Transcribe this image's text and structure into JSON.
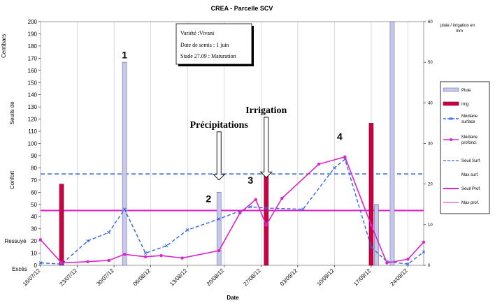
{
  "chart_data": {
    "type": "bar+line",
    "title": "CREA  - Parcelle SCV",
    "xlabel": "Date",
    "ylabel_left": "Centibars",
    "ylabel_right": "pluie / irrigation en mm",
    "ylim_left": [
      0,
      200
    ],
    "ylim_right": [
      0,
      60
    ],
    "left_ticks": [
      0,
      10,
      20,
      30,
      40,
      50,
      60,
      70,
      80,
      90,
      100,
      110,
      120,
      130,
      140,
      150,
      160,
      170,
      180,
      190,
      200
    ],
    "right_ticks": [
      0,
      10,
      20,
      30,
      40,
      50,
      60
    ],
    "x_ticks": [
      "16/07/12",
      "23/07/12",
      "30/07/12",
      "06/08/12",
      "13/08/12",
      "20/08/12",
      "27/08/12",
      "03/09/12",
      "10/09/12",
      "17/09/12",
      "24/09/12"
    ],
    "x_domain": [
      "2012-07-16",
      "2012-09-27"
    ],
    "zones": [
      {
        "label": "Excès",
        "y": 0
      },
      {
        "label": "Ressuyé",
        "y": 20
      },
      {
        "label": "Confort",
        "y": 70
      },
      {
        "label": "Seuils de",
        "y": 125
      },
      {
        "label": "Centibars",
        "y": 180
      }
    ],
    "series": [
      {
        "name": "Pluie",
        "kind": "bar",
        "axis": "right",
        "color": "#c8c8ec",
        "points": [
          [
            "2012-08-01",
            50
          ],
          [
            "2012-08-19",
            18
          ],
          [
            "2012-09-18",
            15
          ],
          [
            "2012-09-21",
            62
          ]
        ]
      },
      {
        "name": "Irrig",
        "kind": "bar",
        "axis": "right",
        "color": "#cc0044",
        "points": [
          [
            "2012-07-20",
            20
          ],
          [
            "2012-08-28",
            22
          ],
          [
            "2012-09-17",
            35
          ]
        ]
      },
      {
        "name": "Médiane surface",
        "kind": "line",
        "axis": "left",
        "color": "#3366dd",
        "dash": true,
        "points": [
          [
            "2012-07-16",
            2
          ],
          [
            "2012-07-20",
            1
          ],
          [
            "2012-07-25",
            20
          ],
          [
            "2012-07-29",
            27
          ],
          [
            "2012-08-01",
            46
          ],
          [
            "2012-08-05",
            10
          ],
          [
            "2012-08-09",
            16
          ],
          [
            "2012-08-13",
            29
          ],
          [
            "2012-08-19",
            38
          ],
          [
            "2012-08-25",
            48
          ],
          [
            "2012-08-28",
            47
          ],
          [
            "2012-09-04",
            46
          ],
          [
            "2012-09-10",
            80
          ],
          [
            "2012-09-12",
            87
          ],
          [
            "2012-09-17",
            15
          ],
          [
            "2012-09-20",
            3
          ],
          [
            "2012-09-24",
            1
          ],
          [
            "2012-09-27",
            11
          ]
        ]
      },
      {
        "name": "Médiane profond.",
        "kind": "line",
        "axis": "left",
        "color": "#dd22cc",
        "points": [
          [
            "2012-07-16",
            21
          ],
          [
            "2012-07-20",
            2
          ],
          [
            "2012-07-25",
            3
          ],
          [
            "2012-07-29",
            4
          ],
          [
            "2012-08-01",
            9
          ],
          [
            "2012-08-05",
            7
          ],
          [
            "2012-08-08",
            8
          ],
          [
            "2012-08-12",
            6
          ],
          [
            "2012-08-19",
            12
          ],
          [
            "2012-08-23",
            43
          ],
          [
            "2012-08-26",
            54
          ],
          [
            "2012-08-28",
            33
          ],
          [
            "2012-08-31",
            55
          ],
          [
            "2012-09-07",
            83
          ],
          [
            "2012-09-12",
            89
          ],
          [
            "2012-09-17",
            33
          ],
          [
            "2012-09-20",
            2
          ],
          [
            "2012-09-24",
            5
          ],
          [
            "2012-09-27",
            19
          ]
        ]
      },
      {
        "name": "Seuil Surf.",
        "kind": "hline",
        "axis": "left",
        "color": "#3366dd",
        "dash": true,
        "y": 75
      },
      {
        "name": "Max surf.",
        "kind": "legend-only"
      },
      {
        "name": "Seuil Prof.",
        "kind": "hline",
        "axis": "left",
        "color": "#dd22cc",
        "y": 45
      },
      {
        "name": "Max prof.",
        "kind": "legend-only",
        "color": "#dd22cc"
      }
    ],
    "legend": [
      "Pluie",
      "Irrig",
      "Médiane surface",
      "Médiane profond.",
      "Seuil Surf.",
      "Max surf.",
      "Seuil Prof.",
      "Max prof."
    ],
    "legend_lines": [
      [
        "Pluie"
      ],
      [
        "Irrig"
      ],
      [
        "Médiane",
        "surface"
      ],
      [
        "Médiane",
        "profond."
      ],
      [
        "Seuil Surf."
      ],
      [
        "Max surf."
      ],
      [
        "Seuil Prof."
      ],
      [
        "Max prof."
      ]
    ],
    "info_box": [
      "Variété :Vivani",
      "Date de semis : 1 juin",
      "Stade 27.09 : Maturation"
    ],
    "annotations": [
      {
        "text": "Précipitations",
        "at": [
          "2012-08-19",
          70
        ],
        "label_y": 113
      },
      {
        "text": "Irrigation",
        "at": [
          "2012-08-28",
          72
        ],
        "label_y": 125
      }
    ],
    "markers": [
      {
        "text": "1",
        "at": [
          "2012-08-01",
          170
        ]
      },
      {
        "text": "2",
        "at": [
          "2012-08-17",
          52
        ]
      },
      {
        "text": "3",
        "at": [
          "2012-08-25",
          67
        ]
      },
      {
        "text": "4",
        "at": [
          "2012-09-11",
          103
        ]
      }
    ]
  }
}
